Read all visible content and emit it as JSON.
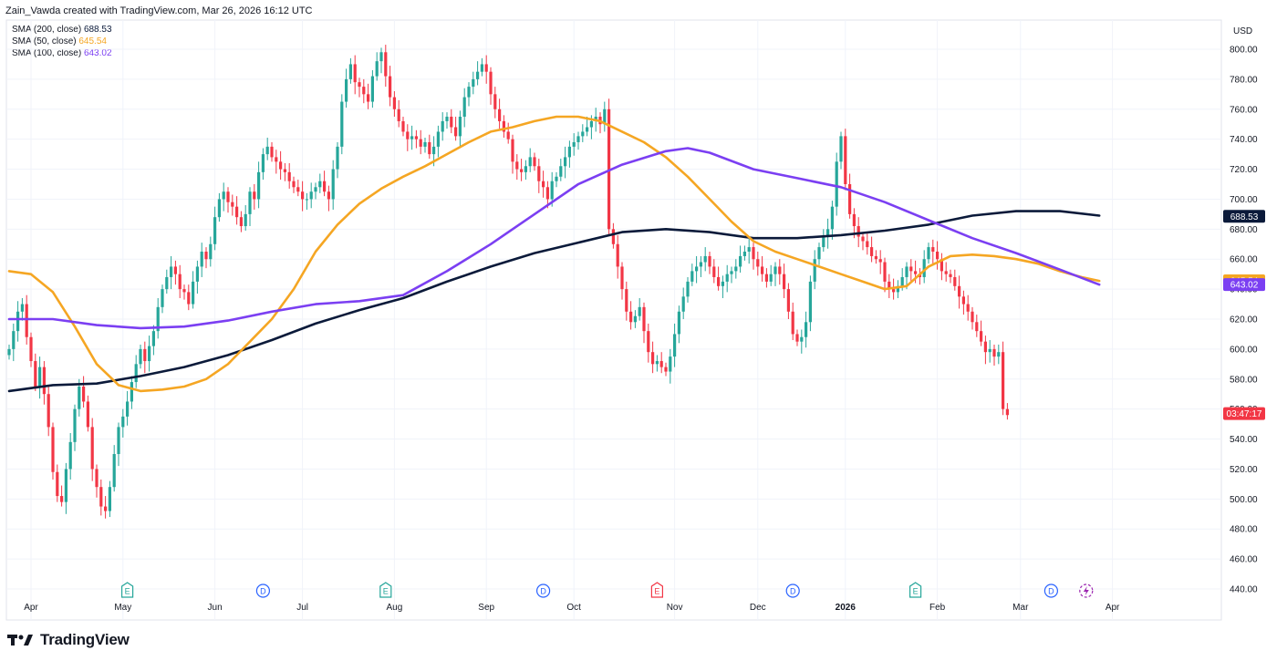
{
  "header": {
    "credit": "Zain_Vawda created with TradingView.com, Mar 26, 2026 16:12 UTC"
  },
  "legend": [
    {
      "label": "SMA (200, close)",
      "value": "688.53",
      "color": "#0b1a3a"
    },
    {
      "label": "SMA (50, close)",
      "value": "645.54",
      "color": "#f5a623"
    },
    {
      "label": "SMA (100, close)",
      "value": "643.02",
      "color": "#7b3ff2"
    }
  ],
  "currency": "USD",
  "brand": "TradingView",
  "colors": {
    "up": "#26a69a",
    "down": "#f23645",
    "sma200": "#0b1a3a",
    "sma50": "#f5a623",
    "sma100": "#7b3ff2",
    "grid": "#f0f3fa",
    "axis_text": "#131722"
  },
  "chart_data": {
    "type": "candlestick",
    "y_axis": {
      "min": 430,
      "max": 810,
      "ticks": [
        440,
        460,
        480,
        500,
        520,
        540,
        560,
        580,
        600,
        620,
        640,
        660,
        680,
        700,
        720,
        740,
        760,
        780,
        800
      ],
      "label_position": "right"
    },
    "x_axis": {
      "labels": [
        {
          "text": "Apr",
          "i": 5
        },
        {
          "text": "May",
          "i": 26
        },
        {
          "text": "Jun",
          "i": 47
        },
        {
          "text": "Jul",
          "i": 67
        },
        {
          "text": "Aug",
          "i": 88
        },
        {
          "text": "Sep",
          "i": 109
        },
        {
          "text": "Oct",
          "i": 129
        },
        {
          "text": "Nov",
          "i": 152
        },
        {
          "text": "Dec",
          "i": 171
        },
        {
          "text": "2026",
          "i": 191,
          "bold": true
        },
        {
          "text": "Feb",
          "i": 212
        },
        {
          "text": "Mar",
          "i": 231
        },
        {
          "text": "Apr",
          "i": 252
        }
      ]
    },
    "price_tags": [
      {
        "value": 688.53,
        "text": "688.53",
        "color": "#0b1a3a"
      },
      {
        "value": 645.54,
        "text": "645.54",
        "color": "#f5a623"
      },
      {
        "value": 643.02,
        "text": "643.02",
        "color": "#7b3ff2"
      },
      {
        "value": 557,
        "text": "03:47:17",
        "color": "#f23645"
      }
    ],
    "events": [
      {
        "type": "E",
        "i": 27,
        "color": "#26a69a"
      },
      {
        "type": "D",
        "i": 58,
        "color": "#2962ff"
      },
      {
        "type": "E",
        "i": 86,
        "color": "#26a69a"
      },
      {
        "type": "D",
        "i": 122,
        "color": "#2962ff"
      },
      {
        "type": "E",
        "i": 148,
        "color": "#f23645"
      },
      {
        "type": "D",
        "i": 179,
        "color": "#2962ff"
      },
      {
        "type": "E",
        "i": 207,
        "color": "#26a69a"
      },
      {
        "type": "D",
        "i": 238,
        "color": "#2962ff"
      },
      {
        "type": "F",
        "i": 246,
        "color": "#9c27b0"
      }
    ],
    "closes": [
      600,
      612,
      625,
      630,
      608,
      592,
      575,
      588,
      570,
      548,
      518,
      502,
      498,
      520,
      538,
      560,
      575,
      565,
      548,
      520,
      508,
      495,
      492,
      508,
      530,
      548,
      555,
      565,
      578,
      590,
      600,
      592,
      602,
      612,
      628,
      640,
      648,
      655,
      650,
      640,
      638,
      630,
      645,
      655,
      665,
      660,
      670,
      688,
      700,
      705,
      698,
      695,
      688,
      682,
      690,
      705,
      700,
      718,
      730,
      735,
      728,
      725,
      720,
      718,
      712,
      708,
      705,
      700,
      700,
      705,
      708,
      712,
      705,
      700,
      720,
      735,
      765,
      780,
      790,
      778,
      775,
      770,
      765,
      782,
      792,
      798,
      782,
      768,
      760,
      752,
      745,
      740,
      742,
      740,
      735,
      738,
      730,
      735,
      745,
      752,
      755,
      748,
      742,
      755,
      768,
      775,
      780,
      785,
      790,
      785,
      770,
      760,
      752,
      745,
      740,
      725,
      720,
      718,
      722,
      728,
      722,
      712,
      708,
      700,
      712,
      715,
      722,
      728,
      735,
      738,
      742,
      745,
      748,
      752,
      755,
      750,
      760,
      680,
      670,
      655,
      640,
      625,
      618,
      622,
      628,
      612,
      598,
      590,
      592,
      588,
      585,
      595,
      610,
      625,
      635,
      645,
      652,
      655,
      658,
      662,
      655,
      648,
      642,
      645,
      650,
      652,
      655,
      662,
      665,
      668,
      660,
      655,
      650,
      645,
      650,
      655,
      650,
      640,
      625,
      610,
      605,
      608,
      618,
      645,
      660,
      668,
      675,
      680,
      695,
      725,
      742,
      710,
      690,
      682,
      675,
      672,
      668,
      662,
      660,
      658,
      645,
      640,
      638,
      642,
      648,
      655,
      652,
      650,
      648,
      660,
      668,
      665,
      660,
      652,
      650,
      648,
      642,
      635,
      630,
      625,
      618,
      612,
      605,
      598,
      600,
      595,
      598,
      560,
      556
    ],
    "sma200": [
      {
        "i": 0,
        "v": 572
      },
      {
        "i": 10,
        "v": 576
      },
      {
        "i": 20,
        "v": 577
      },
      {
        "i": 30,
        "v": 582
      },
      {
        "i": 40,
        "v": 588
      },
      {
        "i": 50,
        "v": 596
      },
      {
        "i": 60,
        "v": 606
      },
      {
        "i": 70,
        "v": 617
      },
      {
        "i": 80,
        "v": 626
      },
      {
        "i": 90,
        "v": 634
      },
      {
        "i": 100,
        "v": 645
      },
      {
        "i": 110,
        "v": 655
      },
      {
        "i": 120,
        "v": 664
      },
      {
        "i": 130,
        "v": 671
      },
      {
        "i": 140,
        "v": 678
      },
      {
        "i": 150,
        "v": 680
      },
      {
        "i": 160,
        "v": 678
      },
      {
        "i": 170,
        "v": 674
      },
      {
        "i": 180,
        "v": 674
      },
      {
        "i": 190,
        "v": 676
      },
      {
        "i": 200,
        "v": 679
      },
      {
        "i": 210,
        "v": 683
      },
      {
        "i": 220,
        "v": 689
      },
      {
        "i": 230,
        "v": 692
      },
      {
        "i": 240,
        "v": 692
      },
      {
        "i": 249,
        "v": 689
      }
    ],
    "sma50": [
      {
        "i": 0,
        "v": 652
      },
      {
        "i": 5,
        "v": 650
      },
      {
        "i": 10,
        "v": 638
      },
      {
        "i": 15,
        "v": 615
      },
      {
        "i": 20,
        "v": 590
      },
      {
        "i": 25,
        "v": 576
      },
      {
        "i": 30,
        "v": 572
      },
      {
        "i": 35,
        "v": 573
      },
      {
        "i": 40,
        "v": 575
      },
      {
        "i": 45,
        "v": 580
      },
      {
        "i": 50,
        "v": 590
      },
      {
        "i": 55,
        "v": 605
      },
      {
        "i": 60,
        "v": 620
      },
      {
        "i": 65,
        "v": 640
      },
      {
        "i": 70,
        "v": 665
      },
      {
        "i": 75,
        "v": 683
      },
      {
        "i": 80,
        "v": 697
      },
      {
        "i": 85,
        "v": 707
      },
      {
        "i": 90,
        "v": 715
      },
      {
        "i": 95,
        "v": 722
      },
      {
        "i": 100,
        "v": 730
      },
      {
        "i": 105,
        "v": 738
      },
      {
        "i": 110,
        "v": 745
      },
      {
        "i": 115,
        "v": 748
      },
      {
        "i": 120,
        "v": 752
      },
      {
        "i": 125,
        "v": 755
      },
      {
        "i": 130,
        "v": 755
      },
      {
        "i": 135,
        "v": 752
      },
      {
        "i": 140,
        "v": 745
      },
      {
        "i": 145,
        "v": 738
      },
      {
        "i": 150,
        "v": 728
      },
      {
        "i": 155,
        "v": 715
      },
      {
        "i": 160,
        "v": 700
      },
      {
        "i": 165,
        "v": 685
      },
      {
        "i": 170,
        "v": 672
      },
      {
        "i": 175,
        "v": 665
      },
      {
        "i": 180,
        "v": 660
      },
      {
        "i": 185,
        "v": 655
      },
      {
        "i": 190,
        "v": 650
      },
      {
        "i": 195,
        "v": 645
      },
      {
        "i": 200,
        "v": 640
      },
      {
        "i": 205,
        "v": 642
      },
      {
        "i": 210,
        "v": 655
      },
      {
        "i": 215,
        "v": 662
      },
      {
        "i": 220,
        "v": 663
      },
      {
        "i": 225,
        "v": 662
      },
      {
        "i": 230,
        "v": 660
      },
      {
        "i": 235,
        "v": 657
      },
      {
        "i": 240,
        "v": 652
      },
      {
        "i": 245,
        "v": 648
      },
      {
        "i": 249,
        "v": 645.5
      }
    ],
    "sma100": [
      {
        "i": 0,
        "v": 620
      },
      {
        "i": 10,
        "v": 620
      },
      {
        "i": 20,
        "v": 616
      },
      {
        "i": 30,
        "v": 614
      },
      {
        "i": 40,
        "v": 615
      },
      {
        "i": 50,
        "v": 619
      },
      {
        "i": 60,
        "v": 625
      },
      {
        "i": 70,
        "v": 630
      },
      {
        "i": 80,
        "v": 632
      },
      {
        "i": 90,
        "v": 636
      },
      {
        "i": 100,
        "v": 652
      },
      {
        "i": 110,
        "v": 670
      },
      {
        "i": 120,
        "v": 690
      },
      {
        "i": 130,
        "v": 710
      },
      {
        "i": 140,
        "v": 723
      },
      {
        "i": 150,
        "v": 732
      },
      {
        "i": 155,
        "v": 734
      },
      {
        "i": 160,
        "v": 731
      },
      {
        "i": 170,
        "v": 720
      },
      {
        "i": 180,
        "v": 714
      },
      {
        "i": 190,
        "v": 708
      },
      {
        "i": 200,
        "v": 698
      },
      {
        "i": 210,
        "v": 686
      },
      {
        "i": 220,
        "v": 674
      },
      {
        "i": 230,
        "v": 664
      },
      {
        "i": 240,
        "v": 653
      },
      {
        "i": 249,
        "v": 643
      }
    ]
  }
}
